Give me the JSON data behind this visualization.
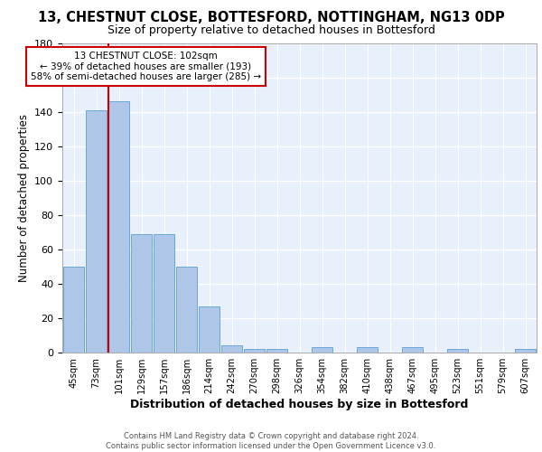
{
  "title": "13, CHESTNUT CLOSE, BOTTESFORD, NOTTINGHAM, NG13 0DP",
  "subtitle": "Size of property relative to detached houses in Bottesford",
  "xlabel": "Distribution of detached houses by size in Bottesford",
  "ylabel": "Number of detached properties",
  "bar_color": "#aec6e8",
  "bar_edge_color": "#5a9fd4",
  "background_color": "#e8f0fb",
  "categories": [
    "45sqm",
    "73sqm",
    "101sqm",
    "129sqm",
    "157sqm",
    "186sqm",
    "214sqm",
    "242sqm",
    "270sqm",
    "298sqm",
    "326sqm",
    "354sqm",
    "382sqm",
    "410sqm",
    "438sqm",
    "467sqm",
    "495sqm",
    "523sqm",
    "551sqm",
    "579sqm",
    "607sqm"
  ],
  "values": [
    50,
    141,
    146,
    69,
    69,
    50,
    27,
    4,
    2,
    2,
    0,
    3,
    0,
    3,
    0,
    3,
    0,
    2,
    0,
    0,
    2
  ],
  "property_bar_index": 2,
  "property_line_color": "#cc0000",
  "annotation_line1": "13 CHESTNUT CLOSE: 102sqm",
  "annotation_line2": "← 39% of detached houses are smaller (193)",
  "annotation_line3": "58% of semi-detached houses are larger (285) →",
  "annotation_box_facecolor": "#ffffff",
  "annotation_box_edgecolor": "#cc0000",
  "ylim": [
    0,
    180
  ],
  "yticks": [
    0,
    20,
    40,
    60,
    80,
    100,
    120,
    140,
    160,
    180
  ],
  "footer_text": "Contains HM Land Registry data © Crown copyright and database right 2024.\nContains public sector information licensed under the Open Government Licence v3.0."
}
